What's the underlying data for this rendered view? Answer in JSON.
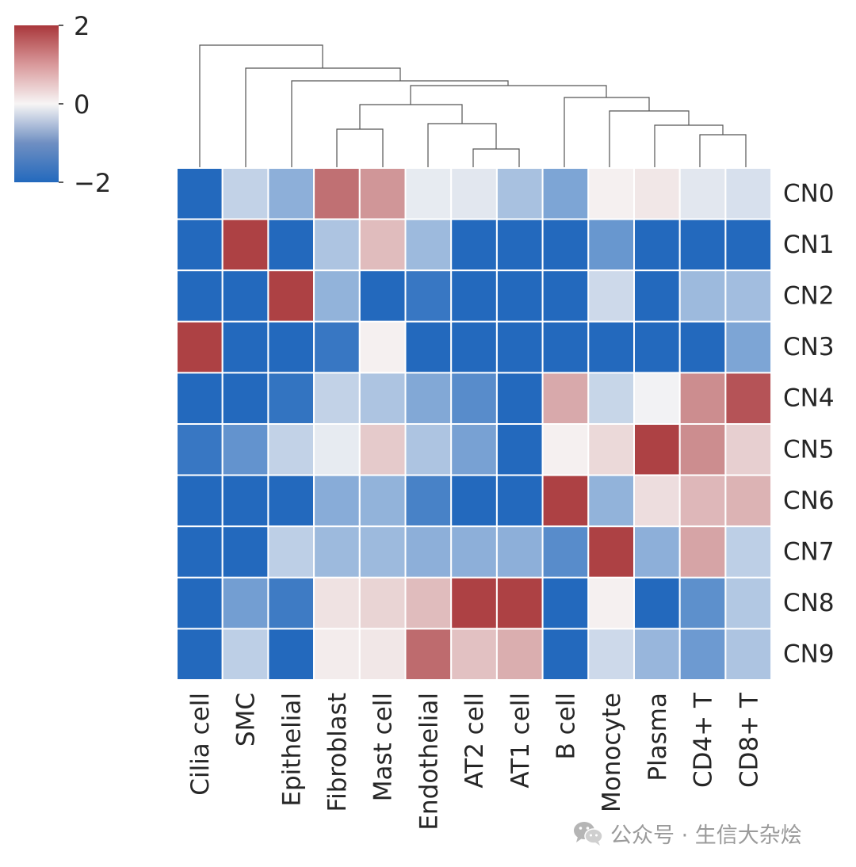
{
  "chart_data": {
    "type": "heatmap",
    "title": "",
    "rows": [
      "CN0",
      "CN1",
      "CN2",
      "CN3",
      "CN4",
      "CN5",
      "CN6",
      "CN7",
      "CN8",
      "CN9"
    ],
    "columns": [
      "Cilia cell",
      "SMC",
      "Epithelial",
      "Fibroblast",
      "Mast cell",
      "Endothelial",
      "AT2 cell",
      "AT1 cell",
      "B cell",
      "Monocyte",
      "Plasma",
      "CD4+ T",
      "CD8+ T"
    ],
    "values": [
      [
        -2.0,
        -0.5,
        -1.0,
        1.4,
        1.0,
        -0.15,
        -0.2,
        -0.75,
        -1.15,
        0.05,
        0.15,
        -0.2,
        -0.3
      ],
      [
        -2.0,
        1.9,
        -2.0,
        -0.7,
        0.6,
        -0.85,
        -2.0,
        -2.0,
        -2.0,
        -1.35,
        -2.0,
        -2.0,
        -2.0
      ],
      [
        -2.0,
        -2.0,
        1.9,
        -0.95,
        -2.0,
        -1.8,
        -2.0,
        -2.0,
        -2.0,
        -0.4,
        -2.0,
        -0.85,
        -0.8
      ],
      [
        1.9,
        -2.0,
        -2.0,
        -1.8,
        0.05,
        -2.0,
        -2.0,
        -2.0,
        -2.0,
        -2.0,
        -2.0,
        -2.0,
        -1.15
      ],
      [
        -2.0,
        -2.0,
        -1.85,
        -0.5,
        -0.7,
        -1.1,
        -1.5,
        -2.0,
        0.8,
        -0.45,
        -0.05,
        1.1,
        1.7
      ],
      [
        -1.8,
        -1.4,
        -0.5,
        -0.15,
        0.45,
        -0.7,
        -1.2,
        -2.0,
        0.05,
        0.3,
        1.9,
        1.1,
        0.4
      ],
      [
        -2.0,
        -2.0,
        -2.0,
        -1.05,
        -0.95,
        -1.65,
        -2.0,
        -2.0,
        1.9,
        -0.95,
        0.25,
        0.65,
        0.7
      ],
      [
        -2.0,
        -2.0,
        -0.55,
        -0.85,
        -0.85,
        -1.0,
        -1.0,
        -1.0,
        -1.5,
        1.9,
        -1.0,
        0.85,
        -0.55
      ],
      [
        -2.0,
        -1.25,
        -1.75,
        0.2,
        0.35,
        0.6,
        1.9,
        1.9,
        -2.0,
        0.05,
        -2.0,
        -1.45,
        -0.65
      ],
      [
        -2.0,
        -0.55,
        -2.0,
        0.1,
        0.15,
        1.45,
        0.55,
        0.75,
        -2.0,
        -0.4,
        -0.9,
        -1.3,
        -0.7
      ]
    ],
    "colorbar": {
      "cmap": "vlag",
      "vmin": -2,
      "vmax": 2,
      "ticks": [
        "2",
        "0",
        "−2"
      ]
    },
    "dendrogram": "column",
    "colors": {
      "low": "#2369bd",
      "mid": "#f7f5f5",
      "high": "#a9373b",
      "text": "#262626",
      "line": "#555555"
    }
  },
  "watermark": {
    "text": "公众号 · 生信大杂烩",
    "icon": "wechat-icon"
  }
}
